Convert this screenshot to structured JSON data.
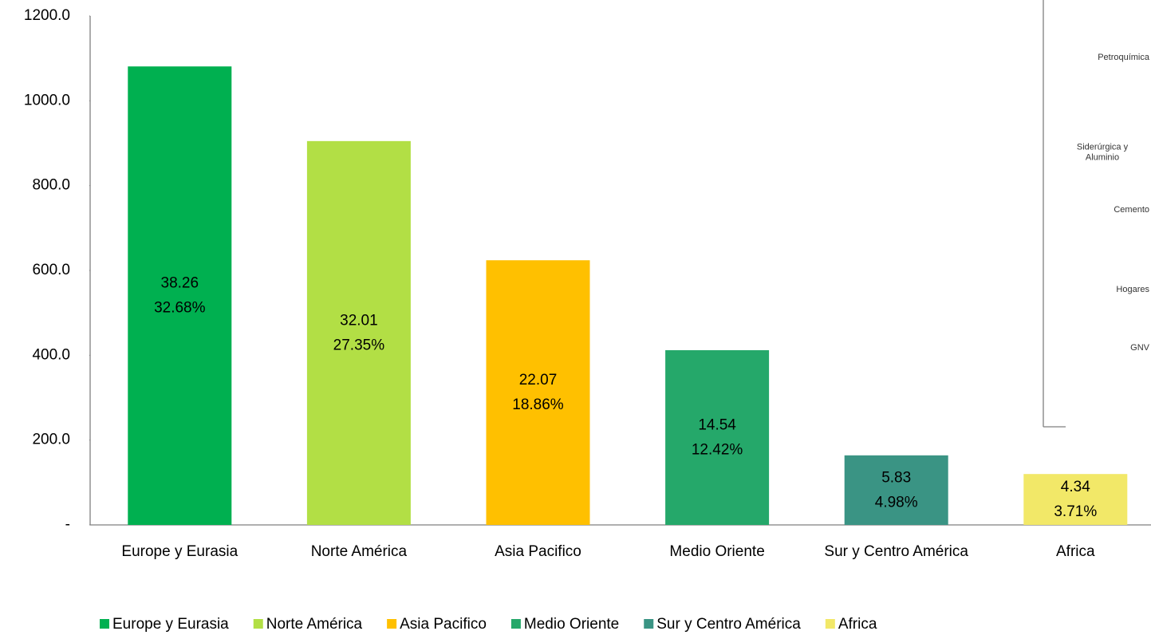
{
  "chart_data": {
    "type": "bar",
    "categories": [
      "Europe y Eurasia",
      "Norte América",
      "Asia Pacifico",
      "Medio Oriente",
      "Sur y Centro América",
      "Africa"
    ],
    "values": [
      1081,
      905,
      624,
      412,
      164,
      120
    ],
    "colors": [
      "#00b050",
      "#b2df45",
      "#ffc000",
      "#25a86a",
      "#3a9484",
      "#f2e868"
    ],
    "label_values": [
      38.26,
      32.01,
      22.07,
      14.54,
      5.83,
      4.34
    ],
    "label_shares": [
      {
        "value": 32.68,
        "label": "32.68%"
      },
      {
        "value": 27.35,
        "label": "27.35%"
      },
      {
        "value": 18.86,
        "label": "18.86%"
      },
      {
        "value": 12.42,
        "label": "12.42%"
      },
      {
        "value": 4.98,
        "label": "4.98%"
      },
      {
        "value": 3.71,
        "label": "3.71%"
      }
    ],
    "ylim": [
      0,
      1200
    ],
    "yticks": [
      {
        "value": 0,
        "label": "-"
      },
      {
        "value": 200,
        "label": "200.0"
      },
      {
        "value": 400,
        "label": "400.0"
      },
      {
        "value": 600,
        "label": "600.0"
      },
      {
        "value": 800,
        "label": "800.0"
      },
      {
        "value": 1000,
        "label": "1000.0"
      },
      {
        "value": 1200,
        "label": "1200.0"
      }
    ],
    "grid": false,
    "legend": "bottom",
    "inset_labels": [
      [
        "Petroquímica"
      ],
      [
        "Siderúrgica y",
        "Aluminio"
      ],
      [
        "Cemento"
      ],
      [
        "Hogares"
      ],
      [
        "GNV"
      ]
    ]
  }
}
